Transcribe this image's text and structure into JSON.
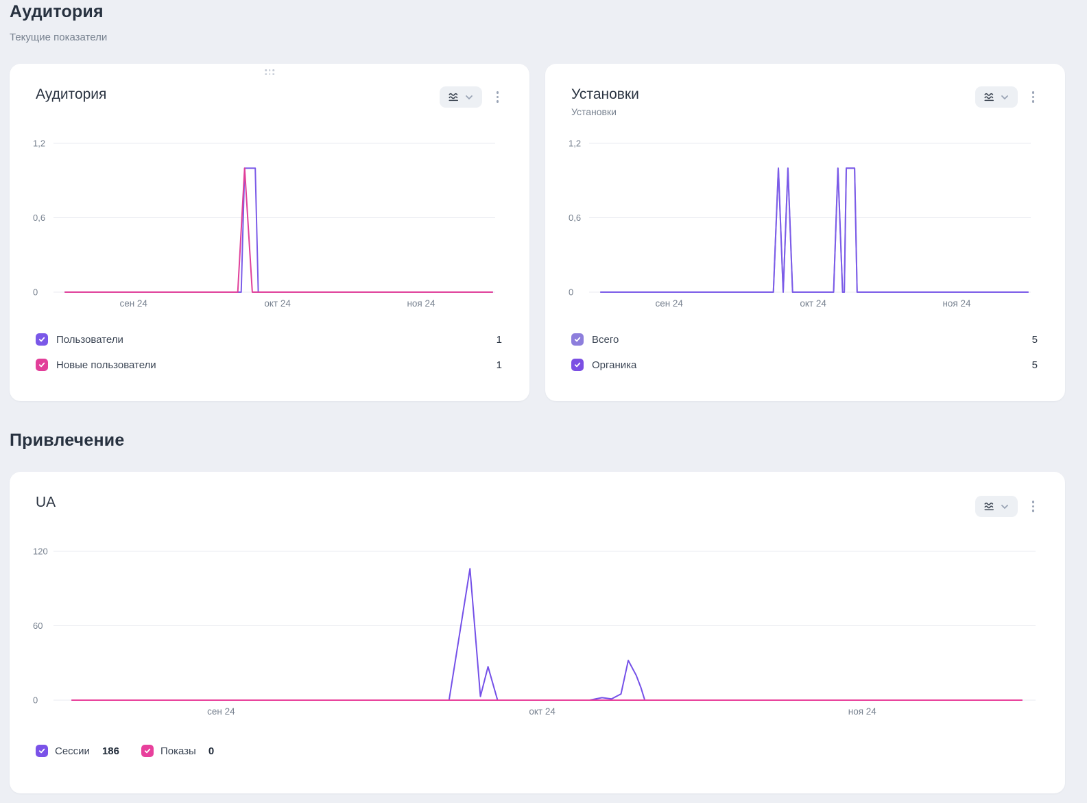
{
  "sections": {
    "audience": {
      "title": "Аудитория",
      "subtitle": "Текущие показатели"
    },
    "acquisition": {
      "title": "Привлечение"
    }
  },
  "cards": {
    "audience": {
      "title": "Аудитория",
      "legend": [
        {
          "label": "Пользователи",
          "value": "1",
          "color": "#7a58e8"
        },
        {
          "label": "Новые пользователи",
          "value": "1",
          "color": "#e23e99"
        }
      ]
    },
    "installs": {
      "title": "Установки",
      "subtitle": "Установки",
      "legend": [
        {
          "label": "Всего",
          "value": "5",
          "color": "#8d7edc"
        },
        {
          "label": "Органика",
          "value": "5",
          "color": "#7b4fe3"
        }
      ]
    },
    "ua": {
      "title": "UA",
      "legend": [
        {
          "label": "Сессии",
          "value": "186",
          "color": "#7a52e8"
        },
        {
          "label": "Показы",
          "value": "0",
          "color": "#e8409c"
        }
      ]
    }
  },
  "icons": {
    "chart_type": "waves-icon",
    "dropdown": "chevron-down-icon",
    "menu": "kebab-menu-icon",
    "drag": "drag-handle-icon",
    "legend_check": "checkmark-icon"
  },
  "chart_data": [
    {
      "type": "line",
      "title": "Аудитория",
      "x_encoding": "fraction of time axis (mid-Aug 2024 — late Nov 2024)",
      "ylim": [
        0,
        1.2
      ],
      "grid": true,
      "yticks": [
        {
          "v": 1.2,
          "label": "1,2"
        },
        {
          "v": 0.6,
          "label": "0,6"
        },
        {
          "v": 0,
          "label": "0"
        }
      ],
      "xticks": [
        {
          "f": 0.16,
          "label": "сен 24"
        },
        {
          "f": 0.497,
          "label": "окт 24"
        },
        {
          "f": 0.833,
          "label": "ноя 24"
        }
      ],
      "series": [
        {
          "name": "Пользователи",
          "total": 1,
          "color": "#7b5be8",
          "points": [
            [
              0,
              0
            ],
            [
              0.412,
              0
            ],
            [
              0.42,
              1
            ],
            [
              0.445,
              1
            ],
            [
              0.452,
              0
            ],
            [
              1,
              0
            ]
          ]
        },
        {
          "name": "Новые пользователи",
          "total": 1,
          "color": "#e0409a",
          "points": [
            [
              0,
              0
            ],
            [
              0.404,
              0
            ],
            [
              0.42,
              1
            ],
            [
              0.438,
              0
            ],
            [
              1,
              0
            ]
          ]
        }
      ]
    },
    {
      "type": "line",
      "title": "Установки",
      "x_encoding": "fraction of time axis (mid-Aug 2024 — late Nov 2024)",
      "ylim": [
        0,
        1.2
      ],
      "grid": true,
      "yticks": [
        {
          "v": 1.2,
          "label": "1,2"
        },
        {
          "v": 0.6,
          "label": "0,6"
        },
        {
          "v": 0,
          "label": "0"
        }
      ],
      "xticks": [
        {
          "f": 0.16,
          "label": "сен 24"
        },
        {
          "f": 0.497,
          "label": "окт 24"
        },
        {
          "f": 0.833,
          "label": "ноя 24"
        }
      ],
      "series": [
        {
          "name": "Всего",
          "total": 5,
          "color": "#9c8ce0",
          "points": [
            [
              0,
              0
            ],
            [
              0.404,
              0
            ],
            [
              0.4157,
              1
            ],
            [
              0.427,
              0
            ],
            [
              0.438,
              1
            ],
            [
              0.449,
              0
            ],
            [
              0.545,
              0
            ],
            [
              0.555,
              1
            ],
            [
              0.566,
              0
            ],
            [
              0.57,
              0
            ],
            [
              0.5746,
              1
            ],
            [
              0.594,
              1
            ],
            [
              0.6,
              0
            ],
            [
              1,
              0
            ]
          ]
        },
        {
          "name": "Органика",
          "total": 5,
          "color": "#7b5be8",
          "points": [
            [
              0,
              0
            ],
            [
              0.404,
              0
            ],
            [
              0.4157,
              1
            ],
            [
              0.427,
              0
            ],
            [
              0.438,
              1
            ],
            [
              0.449,
              0
            ],
            [
              0.545,
              0
            ],
            [
              0.555,
              1
            ],
            [
              0.566,
              0
            ],
            [
              0.57,
              0
            ],
            [
              0.5746,
              1
            ],
            [
              0.594,
              1
            ],
            [
              0.6,
              0
            ],
            [
              1,
              0
            ]
          ]
        }
      ]
    },
    {
      "type": "line",
      "title": "UA",
      "x_encoding": "fraction of time axis (mid-Aug 2024 — late Nov 2024)",
      "ylim": [
        0,
        120
      ],
      "grid": true,
      "yticks": [
        {
          "v": 120,
          "label": "120"
        },
        {
          "v": 60,
          "label": "60"
        },
        {
          "v": 0,
          "label": "0"
        }
      ],
      "xticks": [
        {
          "f": 0.157,
          "label": "сен 24"
        },
        {
          "f": 0.495,
          "label": "окт 24"
        },
        {
          "f": 0.832,
          "label": "ноя 24"
        }
      ],
      "series": [
        {
          "name": "Сессии",
          "total": 186,
          "color": "#7450e8",
          "points": [
            [
              0,
              0
            ],
            [
              0.397,
              0
            ],
            [
              0.419,
              106
            ],
            [
              0.43,
              3
            ],
            [
              0.438,
              27
            ],
            [
              0.448,
              0
            ],
            [
              0.545,
              0
            ],
            [
              0.558,
              2
            ],
            [
              0.568,
              1
            ],
            [
              0.578,
              5
            ],
            [
              0.5856,
              32
            ],
            [
              0.594,
              20
            ],
            [
              0.599,
              10
            ],
            [
              0.603,
              0
            ],
            [
              1,
              0
            ]
          ]
        },
        {
          "name": "Показы",
          "total": 0,
          "color": "#e8409a",
          "points": [
            [
              0,
              0
            ],
            [
              1,
              0
            ]
          ]
        }
      ]
    }
  ]
}
